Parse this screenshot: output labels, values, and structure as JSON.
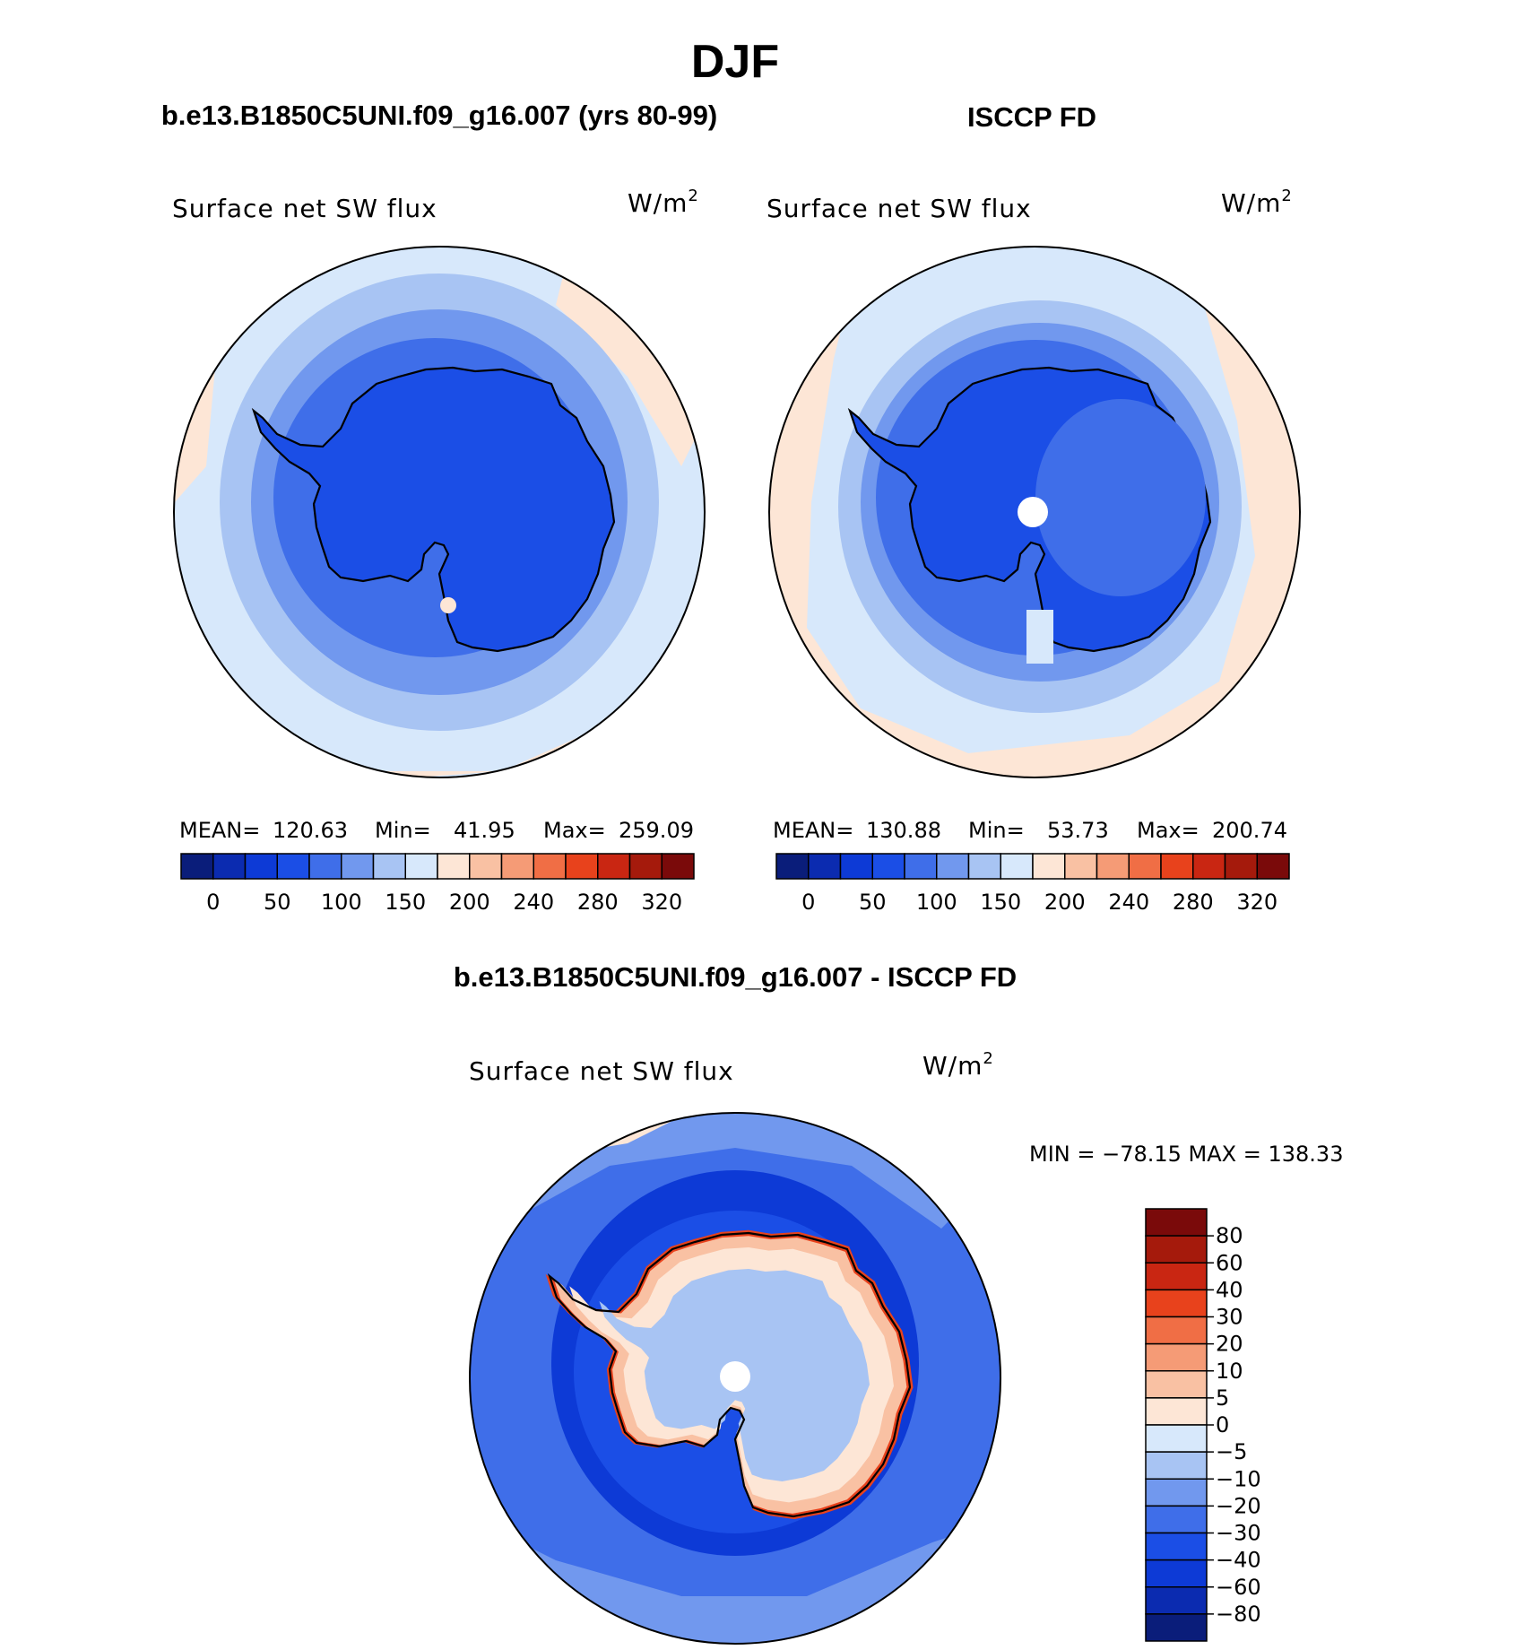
{
  "page": {
    "season": "DJF",
    "case_title": "b.e13.B1850C5UNI.f09_g16.007 (yrs 80-99)",
    "obs_title": "ISCCP FD",
    "diff_title": "b.e13.B1850C5UNI.f09_g16.007 - ISCCP FD"
  },
  "panels": {
    "model": {
      "variable": "Surface net SW flux",
      "units": "W/m",
      "units_sup": "2",
      "stats": {
        "mean_label": "MEAN=",
        "mean": "120.63",
        "min_label": "Min=",
        "min": "41.95",
        "max_label": "Max=",
        "max": "259.09"
      }
    },
    "obs": {
      "variable": "Surface net SW flux",
      "units": "W/m",
      "units_sup": "2",
      "stats": {
        "mean_label": "MEAN=",
        "mean": "130.88",
        "min_label": "Min=",
        "min": "53.73",
        "max_label": "Max=",
        "max": "200.74"
      }
    },
    "diff": {
      "variable": "Surface net SW flux",
      "units": "W/m",
      "units_sup": "2",
      "minmax": "MIN = −78.15 MAX = 138.33"
    }
  },
  "abs_colorbar": {
    "labels": [
      "0",
      "50",
      "100",
      "150",
      "200",
      "240",
      "280",
      "320"
    ],
    "colors": [
      "#0a1d7a",
      "#0b2bb0",
      "#0d3ad6",
      "#1b4ee6",
      "#3f6ee9",
      "#7198ee",
      "#a8c4f3",
      "#d7e8fb",
      "#fde6d6",
      "#f9c1a3",
      "#f59b76",
      "#f06e45",
      "#e8421c",
      "#c92612",
      "#a51a0c",
      "#7a0a0a"
    ]
  },
  "diff_colorbar": {
    "labels": [
      "80",
      "60",
      "40",
      "30",
      "20",
      "10",
      "5",
      "0",
      "−5",
      "−10",
      "−20",
      "−30",
      "−40",
      "−60",
      "−80"
    ],
    "colors": [
      "#7a0a0a",
      "#a51a0c",
      "#c92612",
      "#e8421c",
      "#f06e45",
      "#f59b76",
      "#f9c1a3",
      "#fde6d6",
      "#d7e8fb",
      "#a8c4f3",
      "#7198ee",
      "#3f6ee9",
      "#1b4ee6",
      "#0d3ad6",
      "#0b2bb0",
      "#0a1d7a"
    ]
  },
  "map_colors": {
    "ocean_far": "#d7e8fb",
    "ocean_mid": "#a8c4f3",
    "ocean_near": "#7198ee",
    "shelf": "#3f6ee9",
    "continent_model": "#1b4ee6",
    "continent_obs_east": "#3f6ee9",
    "warm_edge": "#fde6d6",
    "diff_plateau": "#a8c4f3",
    "diff_coast_warm": "#f9c1a3",
    "diff_coast_hot": "#e8421c",
    "diff_ring": "#0d3ad6",
    "diff_ocean": "#3f6ee9"
  }
}
